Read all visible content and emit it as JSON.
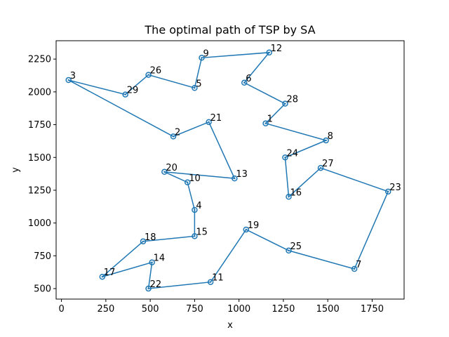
{
  "chart_data": {
    "type": "line",
    "title": "The optimal path of TSP by SA",
    "xlabel": "x",
    "ylabel": "y",
    "xlim": [
      -30,
      1930
    ],
    "ylim": [
      420,
      2390
    ],
    "xticks": [
      0,
      250,
      500,
      750,
      1000,
      1250,
      1500,
      1750
    ],
    "xtick_labels": [
      "0",
      "250",
      "500",
      "750",
      "1000",
      "1250",
      "1500",
      "1750"
    ],
    "yticks": [
      500,
      750,
      1000,
      1250,
      1500,
      1750,
      2000,
      2250
    ],
    "ytick_labels": [
      "500",
      "750",
      "1000",
      "1250",
      "1500",
      "1750",
      "2000",
      "2250"
    ],
    "grid": false,
    "line_color": "#1f77b4",
    "cities": {
      "1": [
        1150,
        1760
      ],
      "2": [
        630,
        1660
      ],
      "3": [
        40,
        2090
      ],
      "4": [
        750,
        1100
      ],
      "5": [
        750,
        2030
      ],
      "6": [
        1030,
        2070
      ],
      "7": [
        1650,
        650
      ],
      "8": [
        1490,
        1630
      ],
      "9": [
        790,
        2260
      ],
      "10": [
        710,
        1310
      ],
      "11": [
        840,
        550
      ],
      "12": [
        1170,
        2300
      ],
      "13": [
        975,
        1340
      ],
      "14": [
        510,
        700
      ],
      "15": [
        750,
        900
      ],
      "16": [
        1280,
        1200
      ],
      "17": [
        230,
        590
      ],
      "18": [
        460,
        860
      ],
      "19": [
        1040,
        950
      ],
      "20": [
        580,
        1390
      ],
      "21": [
        830,
        1770
      ],
      "22": [
        490,
        500
      ],
      "23": [
        1840,
        1240
      ],
      "24": [
        1260,
        1500
      ],
      "25": [
        1280,
        790
      ],
      "26": [
        490,
        2130
      ],
      "27": [
        1460,
        1420
      ],
      "28": [
        1260,
        1910
      ],
      "29": [
        360,
        1980
      ]
    },
    "route": [
      "1",
      "8",
      "24",
      "16",
      "27",
      "23",
      "7",
      "25",
      "19",
      "11",
      "22",
      "14",
      "17",
      "18",
      "15",
      "4",
      "10",
      "20",
      "13",
      "21",
      "2",
      "3",
      "29",
      "26",
      "5",
      "9",
      "12",
      "6",
      "28",
      "1"
    ]
  }
}
